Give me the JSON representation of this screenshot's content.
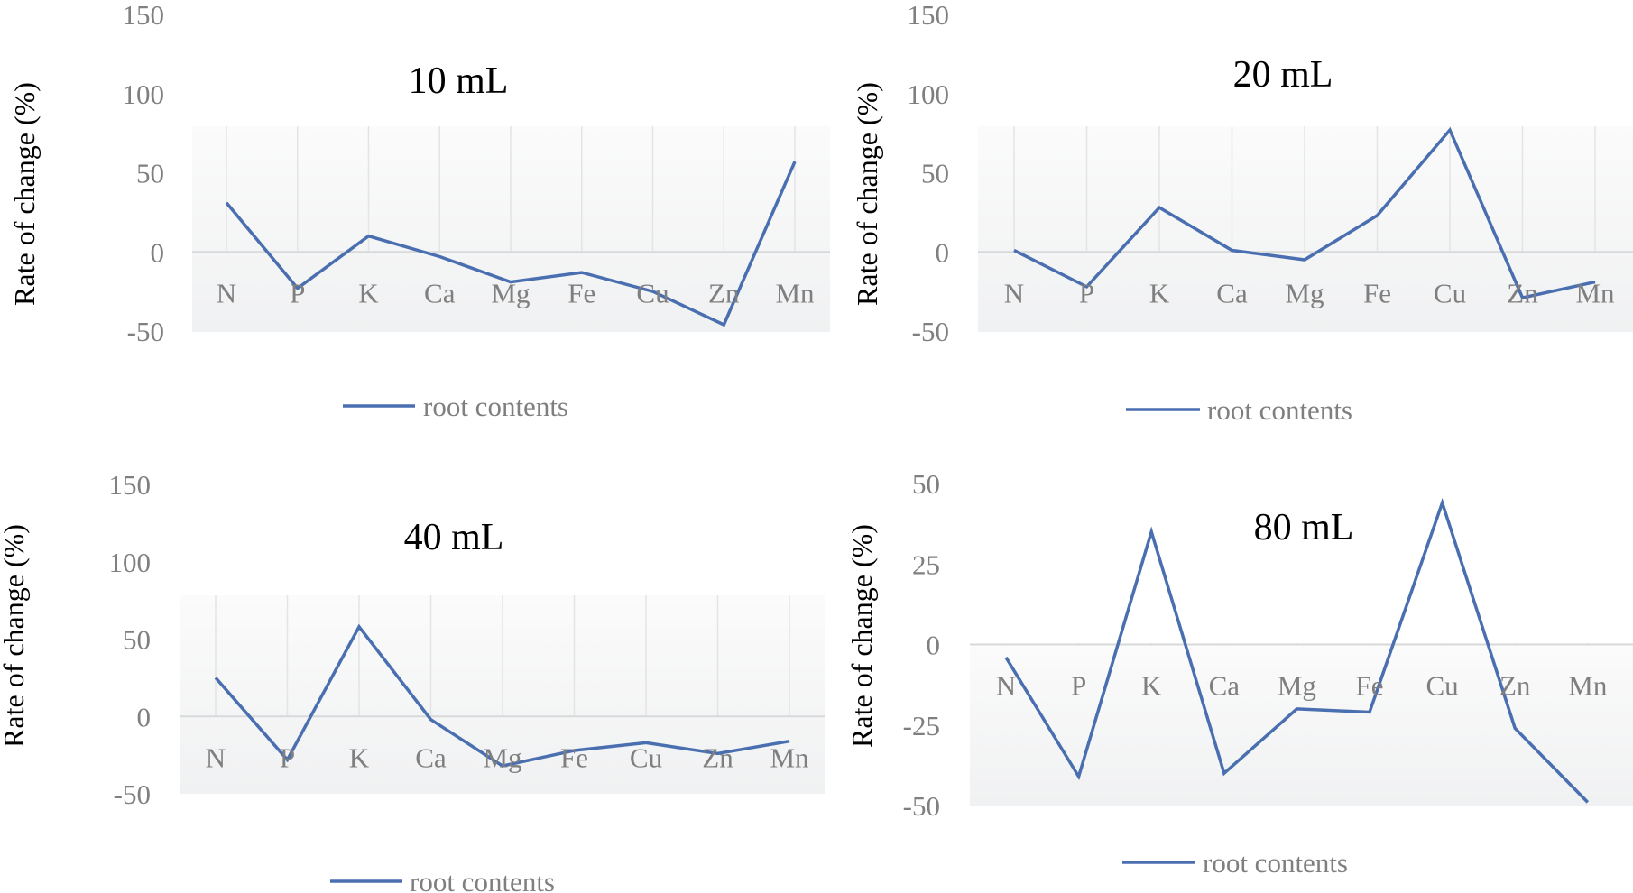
{
  "chart_data": [
    {
      "type": "line",
      "title": "10 mL",
      "ylabel": "Rate of change (%)",
      "categories": [
        "N",
        "P",
        "K",
        "Ca",
        "Mg",
        "Fe",
        "Cu",
        "Zn",
        "Mn"
      ],
      "ylim": [
        -50,
        150
      ],
      "yticks": [
        -50,
        0,
        50,
        100,
        150
      ],
      "series": [
        {
          "name": "root contents",
          "values": [
            31,
            -23,
            10,
            -3,
            -19,
            -13,
            -25,
            -46,
            57
          ]
        }
      ],
      "line_color": "#4a6fb0",
      "legend": "bottom"
    },
    {
      "type": "line",
      "title": "20 mL",
      "ylabel": "Rate of change (%)",
      "categories": [
        "N",
        "P",
        "K",
        "Ca",
        "Mg",
        "Fe",
        "Cu",
        "Zn",
        "Mn"
      ],
      "ylim": [
        -50,
        150
      ],
      "yticks": [
        -50,
        0,
        50,
        100,
        150
      ],
      "series": [
        {
          "name": "root contents",
          "values": [
            1,
            -22,
            28,
            1,
            -5,
            23,
            77,
            -29,
            -19
          ]
        }
      ],
      "line_color": "#4a6fb0",
      "legend": "bottom"
    },
    {
      "type": "line",
      "title": "40 mL",
      "ylabel": "Rate of change (%)",
      "categories": [
        "N",
        "P",
        "K",
        "Ca",
        "Mg",
        "Fe",
        "Cu",
        "Zn",
        "Mn"
      ],
      "ylim": [
        -50,
        150
      ],
      "yticks": [
        -50,
        0,
        50,
        100,
        150
      ],
      "series": [
        {
          "name": "root contents",
          "values": [
            25,
            -28,
            58,
            -2,
            -32,
            -22,
            -17,
            -24,
            -16
          ]
        }
      ],
      "line_color": "#4a6fb0",
      "legend": "bottom"
    },
    {
      "type": "line",
      "title": "80 mL",
      "ylabel": "Rate of change (%)",
      "categories": [
        "N",
        "P",
        "K",
        "Ca",
        "Mg",
        "Fe",
        "Cu",
        "Zn",
        "Mn"
      ],
      "ylim": [
        -50,
        50
      ],
      "yticks": [
        -50,
        -25,
        0,
        25,
        50
      ],
      "series": [
        {
          "name": "root contents",
          "values": [
            -4,
            -41,
            35,
            -40,
            -20,
            -21,
            44,
            -26,
            -49
          ]
        }
      ],
      "line_color": "#4a6fb0",
      "legend": "bottom"
    }
  ]
}
